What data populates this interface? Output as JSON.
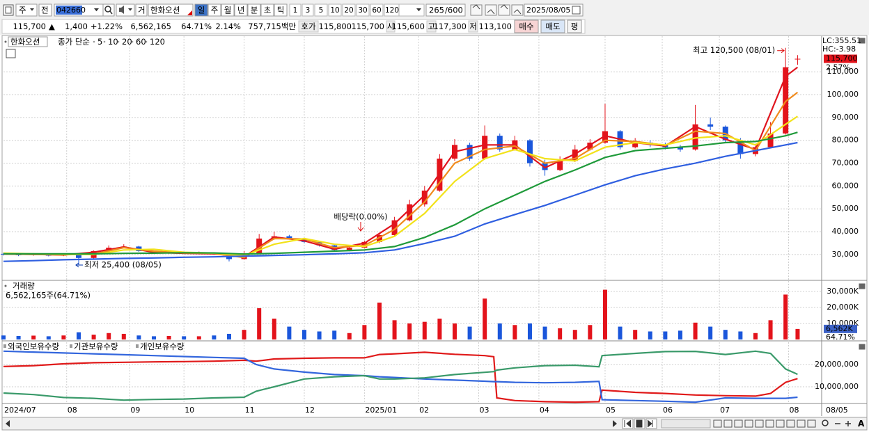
{
  "toolbar": {
    "period": "주",
    "prev": "전",
    "code": "042660",
    "trade": "거",
    "name": "한화오션",
    "intervals": [
      "일",
      "주",
      "월",
      "년",
      "분",
      "초",
      "틱"
    ],
    "minutes": [
      "1",
      "3",
      "5",
      "10",
      "20",
      "30",
      "60",
      "120"
    ],
    "count": "265",
    "max_count": "/600",
    "date": "2025/08/05"
  },
  "quote": {
    "price": "115,700",
    "arrow": "▲",
    "change": "1,400",
    "change_pct": "+1.22%",
    "volume": "6,562,165",
    "volume_ratio": "64.71%",
    "turnover_ratio": "2.14%",
    "amount": "757,715백만",
    "ask_label": "호가",
    "ask": "115,800",
    "bid": "115,700",
    "open_label": "시",
    "open": "115,600",
    "high_label": "고",
    "high": "117,300",
    "low_label": "저",
    "low": "113,100",
    "buy": "매수",
    "sell": "매도",
    "eval": "평"
  },
  "chart_data": [
    {
      "type": "candlestick",
      "title": "한화오션",
      "color_up": "#e3131b",
      "color_down": "#1a56db",
      "x": [
        0,
        5,
        10,
        15,
        20,
        25,
        30,
        35,
        40,
        45,
        50,
        55,
        60,
        65,
        70,
        75,
        80,
        85,
        90,
        95,
        100,
        105,
        110,
        115,
        120,
        125,
        130,
        135,
        140,
        145,
        150,
        155,
        160,
        165,
        170,
        175,
        180,
        185,
        190,
        195,
        200,
        205,
        210,
        215,
        220,
        225,
        230,
        235,
        240,
        245,
        250,
        255,
        260,
        264
      ],
      "open": [
        30300,
        30000,
        29800,
        30200,
        29500,
        30000,
        28500,
        31500,
        33000,
        33500,
        31500,
        30500,
        30800,
        30500,
        30800,
        30200,
        28000,
        30500,
        37000,
        38000,
        37000,
        35500,
        34000,
        32000,
        33000,
        35500,
        38500,
        45000,
        52000,
        58000,
        72000,
        78000,
        72000,
        82000,
        76000,
        80000,
        70000,
        67000,
        71000,
        76000,
        79000,
        84000,
        77000,
        79000,
        78000,
        77000,
        76000,
        87000,
        86000,
        80000,
        74000,
        77000,
        83000,
        115600
      ],
      "high": [
        30800,
        30500,
        30600,
        30400,
        30400,
        30300,
        31800,
        34000,
        34500,
        33800,
        31800,
        31200,
        31200,
        31300,
        31000,
        30400,
        31500,
        39000,
        40000,
        38600,
        37300,
        35800,
        34500,
        33300,
        36000,
        39500,
        46500,
        54000,
        60000,
        74000,
        80500,
        79000,
        86500,
        83000,
        82000,
        80500,
        71500,
        73000,
        78000,
        80500,
        96000,
        84500,
        81000,
        80000,
        79000,
        78000,
        95500,
        90000,
        86500,
        81000,
        78500,
        88000,
        120500,
        117300
      ],
      "low": [
        29600,
        29300,
        29500,
        29200,
        29300,
        25400,
        28300,
        31200,
        32800,
        31200,
        30200,
        30300,
        30200,
        30200,
        29800,
        27000,
        27800,
        30300,
        36500,
        36500,
        35000,
        33500,
        31500,
        31400,
        32700,
        35000,
        38000,
        44500,
        51000,
        57500,
        71000,
        71000,
        71500,
        75000,
        75500,
        68500,
        64500,
        66500,
        70500,
        75500,
        78500,
        76000,
        76500,
        77000,
        76000,
        75000,
        75500,
        84500,
        79000,
        72000,
        73000,
        76500,
        82500,
        113100
      ],
      "close": [
        30000,
        29800,
        30200,
        29500,
        30000,
        28500,
        31500,
        33000,
        33500,
        31500,
        30500,
        30800,
        30500,
        30800,
        30200,
        28000,
        30500,
        37000,
        38000,
        37000,
        35500,
        34000,
        32000,
        33000,
        35500,
        38500,
        45000,
        52000,
        58000,
        72000,
        78000,
        72000,
        82000,
        76000,
        80000,
        70000,
        67000,
        71000,
        76000,
        79000,
        84000,
        77000,
        79000,
        78000,
        77000,
        76000,
        87000,
        86000,
        80000,
        74000,
        77000,
        83000,
        112000,
        115700
      ],
      "ma": {
        "label": "종가 단순",
        "x": [
          0,
          10,
          20,
          30,
          40,
          50,
          60,
          70,
          80,
          90,
          100,
          110,
          120,
          130,
          140,
          150,
          160,
          170,
          180,
          190,
          200,
          210,
          220,
          230,
          240,
          250,
          260,
          264
        ],
        "series": [
          {
            "name": "5",
            "color": "#e0141e",
            "values": [
              30200,
              30100,
              29800,
              31000,
              33300,
              31000,
              30500,
              30300,
              29000,
              37700,
              36000,
              32300,
              35000,
              43500,
              56000,
              75000,
              78000,
              78000,
              68000,
              74000,
              82000,
              79000,
              77500,
              86000,
              80500,
              76000,
              108000,
              112000
            ]
          },
          {
            "name": "10",
            "color": "#f08a1c",
            "values": [
              30300,
              30100,
              29900,
              30200,
              33000,
              31500,
              30700,
              30500,
              28700,
              37000,
              36800,
              33000,
              34000,
              41000,
              53000,
              70000,
              76000,
              77500,
              70000,
              72000,
              80000,
              79500,
              77800,
              84000,
              83000,
              75500,
              97000,
              101000
            ]
          },
          {
            "name": "20",
            "color": "#f2e21a",
            "values": [
              30600,
              30300,
              30100,
              30000,
              32000,
              32300,
              31000,
              30600,
              29500,
              34500,
              37000,
              34500,
              33500,
              38000,
              48000,
              62000,
              72000,
              76000,
              72000,
              71000,
              77000,
              79000,
              78000,
              81000,
              82000,
              78000,
              87000,
              90500
            ]
          },
          {
            "name": "60",
            "color": "#1f9a3a",
            "values": [
              30300,
              30300,
              30300,
              30300,
              30500,
              30600,
              30800,
              30700,
              30200,
              30500,
              31000,
              31500,
              32000,
              33500,
              37500,
              43000,
              50000,
              56000,
              62000,
              67000,
              72500,
              75500,
              76500,
              77500,
              79000,
              79500,
              82000,
              83500
            ]
          },
          {
            "name": "120",
            "color": "#2f5fe0",
            "values": [
              27000,
              27300,
              27700,
              28000,
              28300,
              28500,
              28800,
              29000,
              29300,
              29600,
              29900,
              30300,
              30800,
              32000,
              34800,
              38000,
              43400,
              47500,
              51500,
              56000,
              60500,
              64500,
              67500,
              70000,
              73000,
              75500,
              78000,
              79000
            ]
          }
        ]
      },
      "xlim": [
        0,
        272
      ],
      "ylim": [
        19000,
        125600
      ],
      "yticks": [
        {
          "value": 30000,
          "label": "30,000"
        },
        {
          "value": 40000,
          "label": "40,000"
        },
        {
          "value": 50000,
          "label": "50,000"
        },
        {
          "value": 60000,
          "label": "60,000"
        },
        {
          "value": 70000,
          "label": "70,000"
        },
        {
          "value": 80000,
          "label": "80,000"
        },
        {
          "value": 90000,
          "label": "90,000"
        },
        {
          "value": 100000,
          "label": "100,000"
        },
        {
          "value": 110000,
          "label": "110,000"
        }
      ],
      "high_note": "최고 120,500 (08/01)",
      "low_note": "최저 25,400 (08/05)",
      "dividend_note": "배당락(0.00%)",
      "lc": "LC:355.51",
      "hc": "HC:-3.98",
      "last_label": "115,700",
      "last_pct": "2.57%",
      "grid": true
    },
    {
      "type": "bar",
      "title": "거래량",
      "summary": "6,562,165주(64.71%)",
      "x": [
        0,
        5,
        10,
        15,
        20,
        25,
        30,
        35,
        40,
        45,
        50,
        55,
        60,
        65,
        70,
        75,
        80,
        85,
        90,
        95,
        100,
        105,
        110,
        115,
        120,
        125,
        130,
        135,
        140,
        145,
        150,
        155,
        160,
        165,
        170,
        175,
        180,
        185,
        190,
        195,
        200,
        205,
        210,
        215,
        220,
        225,
        230,
        235,
        240,
        245,
        250,
        255,
        260,
        264
      ],
      "values": [
        2500,
        2200,
        2400,
        2000,
        2500,
        4500,
        3000,
        4000,
        3500,
        2500,
        2000,
        2200,
        2000,
        2000,
        2500,
        3500,
        6000,
        19500,
        13000,
        8000,
        6000,
        5000,
        5500,
        4000,
        9000,
        23000,
        12000,
        10000,
        11000,
        13000,
        10000,
        8000,
        25500,
        10000,
        9000,
        10000,
        8000,
        7000,
        6000,
        9000,
        31000,
        8000,
        6000,
        5000,
        5000,
        5500,
        10500,
        8000,
        6000,
        5000,
        4000,
        12000,
        28000,
        6562
      ],
      "xlim": [
        0,
        272
      ],
      "ylim": [
        0,
        36000
      ],
      "yticks": [
        {
          "value": 10000,
          "label": "10,000K"
        },
        {
          "value": 20000,
          "label": "20,000K"
        },
        {
          "value": 30000,
          "label": "30,000K"
        }
      ],
      "last_label": "6,562K",
      "last_ratio": "64.71%",
      "grid": true
    },
    {
      "type": "line",
      "x": [
        0,
        10,
        20,
        30,
        40,
        50,
        60,
        70,
        80,
        84,
        90,
        100,
        110,
        120,
        125,
        130,
        140,
        150,
        160,
        163,
        164,
        170,
        180,
        190,
        198,
        199,
        210,
        220,
        230,
        240,
        250,
        255,
        260,
        264
      ],
      "series": [
        {
          "name": "외국인보유수량",
          "color": "#e01a1a",
          "values": [
            19100000,
            19500000,
            20300000,
            20800000,
            21000000,
            21200000,
            21300000,
            21500000,
            21900000,
            21500000,
            22500000,
            22800000,
            23000000,
            23000000,
            24500000,
            24800000,
            25500000,
            24600000,
            24000000,
            23500000,
            5000000,
            3800000,
            3300000,
            3100000,
            3300000,
            8500000,
            7500000,
            7000000,
            6300000,
            6000000,
            5800000,
            7000000,
            12000000,
            13700000
          ]
        },
        {
          "name": "기관보유수량",
          "color": "#3366dd",
          "values": [
            26000000,
            25600000,
            25200000,
            24800000,
            24400000,
            24000000,
            23600000,
            23200000,
            22800000,
            20000000,
            18000000,
            16600000,
            15500000,
            15000000,
            14500000,
            14200000,
            13500000,
            13000000,
            12500000,
            12300000,
            12300000,
            12000000,
            11800000,
            12000000,
            12400000,
            4200000,
            3800000,
            3500000,
            3100000,
            5000000,
            4800000,
            4800000,
            4800000,
            5300000
          ]
        },
        {
          "name": "개인보유수량",
          "color": "#3a9a6a",
          "values": [
            7200000,
            6500000,
            5200000,
            4800000,
            4000000,
            4300000,
            4500000,
            5000000,
            5300000,
            8000000,
            10000000,
            13500000,
            14500000,
            15000000,
            13500000,
            13500000,
            14000000,
            15500000,
            16500000,
            16800000,
            17500000,
            18500000,
            19500000,
            19700000,
            19000000,
            24000000,
            25000000,
            25800000,
            25900000,
            24500000,
            26000000,
            25000000,
            18000000,
            15600000
          ]
        }
      ],
      "xlim": [
        0,
        272
      ],
      "ylim": [
        2500000,
        30000000
      ],
      "yticks": [
        {
          "value": 10000000,
          "label": "10,000,000"
        },
        {
          "value": 20000000,
          "label": "20,000,000"
        }
      ],
      "xticks": [
        {
          "value": 0,
          "label": "2024/07"
        },
        {
          "value": 21,
          "label": "08"
        },
        {
          "value": 42,
          "label": "09"
        },
        {
          "value": 60,
          "label": "10"
        },
        {
          "value": 80,
          "label": "11"
        },
        {
          "value": 100,
          "label": "12"
        },
        {
          "value": 120,
          "label": "2025/01"
        },
        {
          "value": 138,
          "label": "02"
        },
        {
          "value": 158,
          "label": "03"
        },
        {
          "value": 178,
          "label": "04"
        },
        {
          "value": 200,
          "label": "05"
        },
        {
          "value": 219,
          "label": "06"
        },
        {
          "value": 238,
          "label": "07"
        },
        {
          "value": 261,
          "label": "08"
        }
      ],
      "last_date": "08/05",
      "font_button": "A",
      "grid": true
    }
  ]
}
